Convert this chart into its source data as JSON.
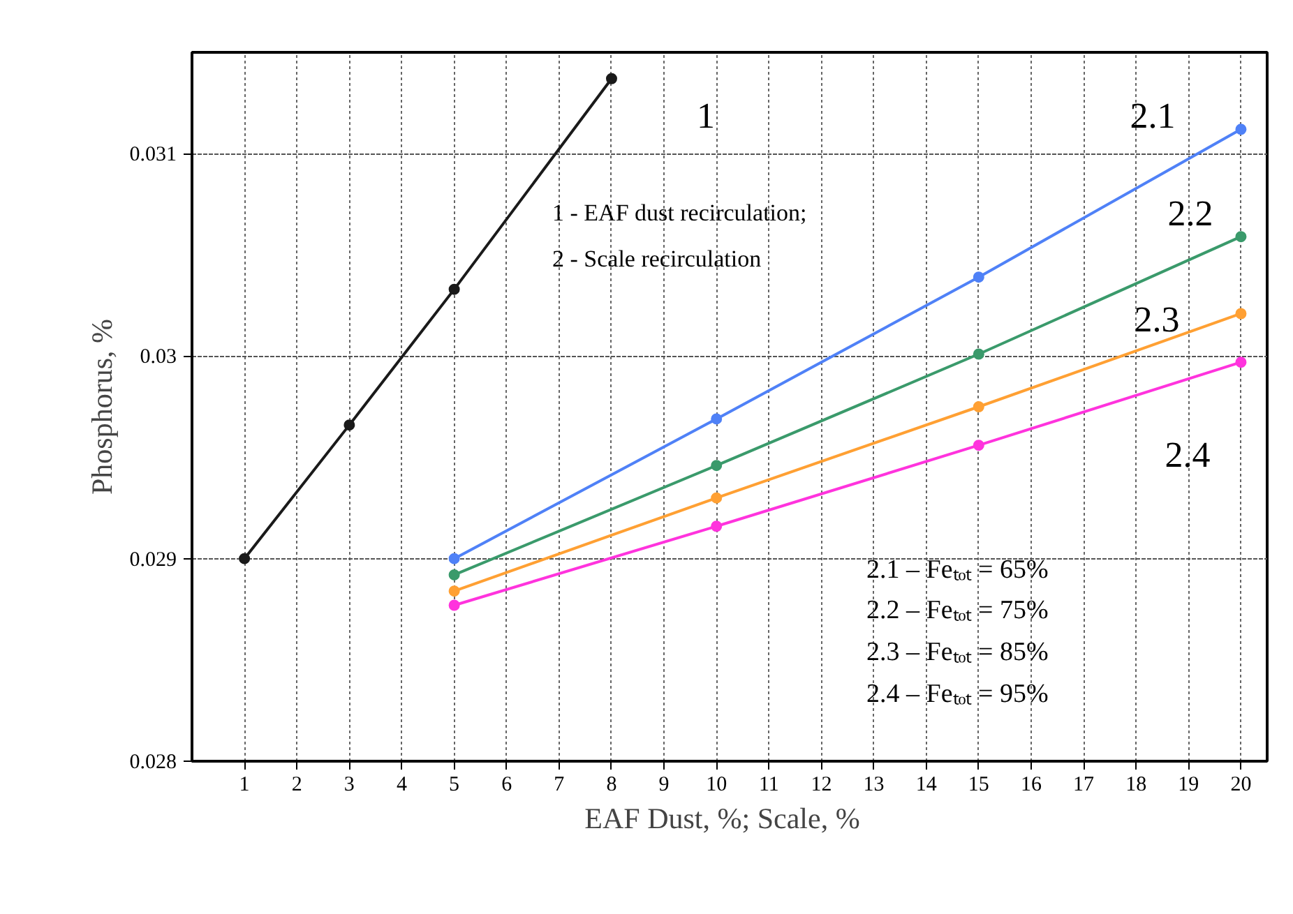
{
  "chart_data": {
    "type": "line",
    "xlabel": "EAF Dust, %;   Scale, %",
    "ylabel": "Phosphorus, %",
    "xlim": [
      0,
      20.5
    ],
    "xticks": [
      1,
      2,
      3,
      4,
      5,
      6,
      7,
      8,
      9,
      10,
      11,
      12,
      13,
      14,
      15,
      16,
      17,
      18,
      19,
      20
    ],
    "ylim": [
      0.028,
      0.0315
    ],
    "yticks": [
      0.028,
      0.029,
      0.03,
      0.031
    ],
    "grid": true,
    "marker": "circle",
    "line_style": "solid",
    "series": [
      {
        "color": "#1a1a1a",
        "x": [
          1,
          3,
          5,
          8
        ],
        "values": [
          0.029,
          0.02966,
          0.03033,
          0.03137
        ]
      },
      {
        "color": "#4f81f7",
        "x": [
          5,
          10,
          15,
          20
        ],
        "values": [
          0.029,
          0.02969,
          0.03039,
          0.03112
        ]
      },
      {
        "color": "#3a9a6b",
        "x": [
          5,
          10,
          15,
          20
        ],
        "values": [
          0.02892,
          0.02946,
          0.03001,
          0.03059
        ]
      },
      {
        "color": "#ffa033",
        "x": [
          5,
          10,
          15,
          20
        ],
        "values": [
          0.02884,
          0.0293,
          0.02975,
          0.03021
        ]
      },
      {
        "color": "#ff33dd",
        "x": [
          5,
          10,
          15,
          20
        ],
        "values": [
          0.02877,
          0.02916,
          0.02956,
          0.02997
        ]
      }
    ],
    "annotations": [
      "1",
      "2.1",
      "2.2",
      "2.3",
      "2.4",
      "1 - EAF dust recirculation;",
      "2 - Scale recirculation",
      "2.1 – Feₜₒₜ = 65%",
      "2.2 – Feₜₒₜ = 75%",
      "2.3 – Feₜₒₜ = 85%",
      "2.4 – Feₜₒₜ = 95%"
    ]
  }
}
